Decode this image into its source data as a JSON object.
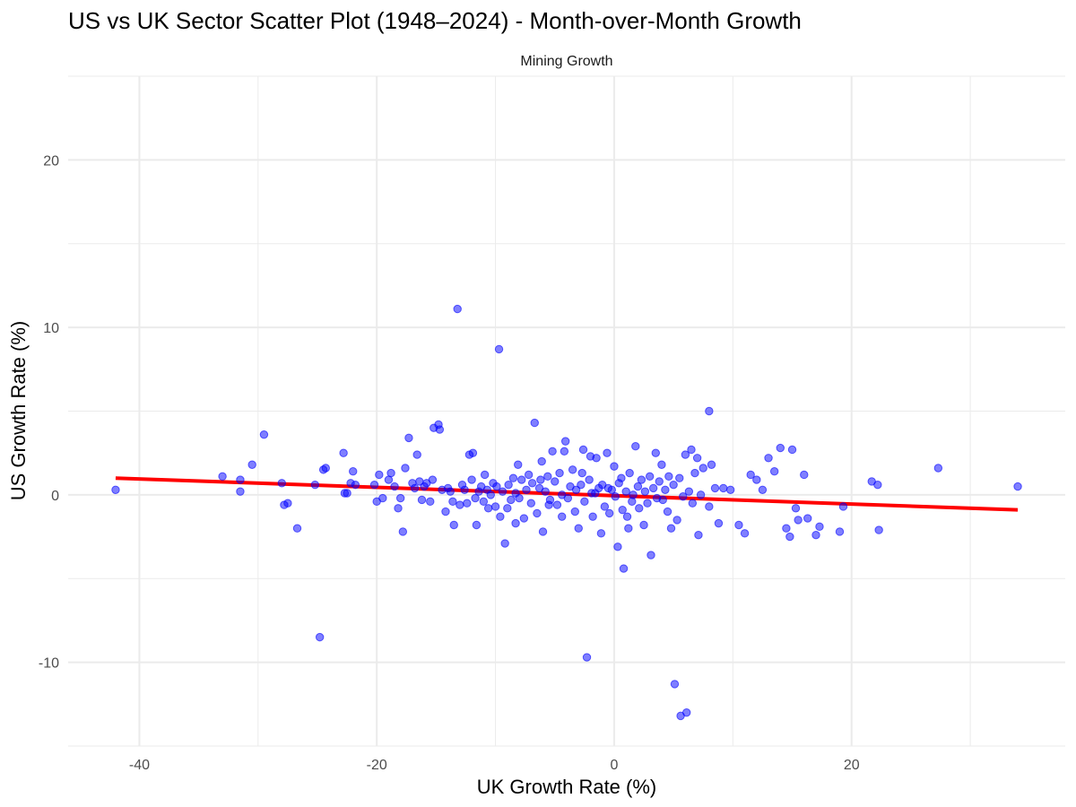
{
  "chart_data": {
    "type": "scatter",
    "title": "US vs UK Sector Scatter Plot (1948–2024) - Month-over-Month Growth",
    "subtitle": "Mining Growth",
    "xlabel": "UK Growth Rate (%)",
    "ylabel": "US Growth Rate (%)",
    "xlim": [
      -46,
      38
    ],
    "ylim": [
      -15,
      25
    ],
    "x_ticks": [
      -40,
      -20,
      0,
      20
    ],
    "y_ticks": [
      -10,
      0,
      10,
      20
    ],
    "x_tick_labels": [
      "-40",
      "-20",
      "0",
      "20"
    ],
    "y_tick_labels": [
      "-10",
      "0",
      "10",
      "20"
    ],
    "grid": true,
    "point_color": "#0000ff",
    "fit_line_color": "#ff0000",
    "fit_line": {
      "x": [
        -42,
        34
      ],
      "y": [
        1.0,
        -0.9
      ]
    },
    "series": [
      {
        "points": [
          [
            -42,
            0.3
          ],
          [
            -33,
            1.1
          ],
          [
            -31.5,
            0.9
          ],
          [
            -31.5,
            0.2
          ],
          [
            -30.5,
            1.8
          ],
          [
            -29.5,
            3.6
          ],
          [
            -28,
            0.7
          ],
          [
            -27.8,
            -0.6
          ],
          [
            -27.5,
            -0.5
          ],
          [
            -26.7,
            -2.0
          ],
          [
            -25.2,
            0.6
          ],
          [
            -24.8,
            -8.5
          ],
          [
            -24.5,
            1.5
          ],
          [
            -24.3,
            1.6
          ],
          [
            -22.8,
            2.5
          ],
          [
            -22.7,
            0.1
          ],
          [
            -22.5,
            0.1
          ],
          [
            -22.2,
            0.7
          ],
          [
            -22,
            1.4
          ],
          [
            -21.8,
            0.6
          ],
          [
            -20.2,
            0.6
          ],
          [
            -20,
            -0.4
          ],
          [
            -19.8,
            1.2
          ],
          [
            -19.5,
            -0.2
          ],
          [
            -19,
            0.9
          ],
          [
            -18.8,
            1.3
          ],
          [
            -18.5,
            0.5
          ],
          [
            -18.2,
            -0.8
          ],
          [
            -18,
            -0.2
          ],
          [
            -17.8,
            -2.2
          ],
          [
            -17.6,
            1.6
          ],
          [
            -17.3,
            3.4
          ],
          [
            -17,
            0.7
          ],
          [
            -16.8,
            0.4
          ],
          [
            -16.6,
            2.4
          ],
          [
            -16.4,
            0.8
          ],
          [
            -16.2,
            -0.3
          ],
          [
            -16,
            0.5
          ],
          [
            -15.8,
            0.7
          ],
          [
            -15.5,
            -0.4
          ],
          [
            -15.3,
            0.9
          ],
          [
            -15.2,
            4.0
          ],
          [
            -14.8,
            4.2
          ],
          [
            -14.7,
            3.9
          ],
          [
            -14.5,
            0.3
          ],
          [
            -14.2,
            -1.0
          ],
          [
            -14,
            0.4
          ],
          [
            -13.8,
            0.2
          ],
          [
            -13.6,
            -0.4
          ],
          [
            -13.5,
            -1.8
          ],
          [
            -13.2,
            11.1
          ],
          [
            -13,
            -0.6
          ],
          [
            -12.8,
            0.6
          ],
          [
            -12.6,
            0.3
          ],
          [
            -12.4,
            -0.5
          ],
          [
            -12.2,
            2.4
          ],
          [
            -12,
            0.9
          ],
          [
            -11.9,
            2.5
          ],
          [
            -11.7,
            -0.2
          ],
          [
            -11.6,
            -1.8
          ],
          [
            -11.4,
            0.2
          ],
          [
            -11.2,
            0.5
          ],
          [
            -11,
            -0.4
          ],
          [
            -10.9,
            1.2
          ],
          [
            -10.7,
            0.3
          ],
          [
            -10.6,
            -0.8
          ],
          [
            -10.4,
            0.0
          ],
          [
            -10.2,
            0.7
          ],
          [
            -10,
            -0.7
          ],
          [
            -9.9,
            0.5
          ],
          [
            -9.7,
            8.7
          ],
          [
            -9.6,
            -1.3
          ],
          [
            -9.4,
            0.2
          ],
          [
            -9.2,
            -2.9
          ],
          [
            -9.0,
            -0.8
          ],
          [
            -8.9,
            0.6
          ],
          [
            -8.7,
            -0.3
          ],
          [
            -8.5,
            1.0
          ],
          [
            -8.3,
            0.1
          ],
          [
            -8.1,
            1.8
          ],
          [
            -8.0,
            -0.2
          ],
          [
            -7.8,
            0.9
          ],
          [
            -7.6,
            -1.4
          ],
          [
            -7.4,
            0.3
          ],
          [
            -7.2,
            1.2
          ],
          [
            -7.0,
            -0.5
          ],
          [
            -6.9,
            0.7
          ],
          [
            -6.7,
            4.3
          ],
          [
            -6.5,
            -1.1
          ],
          [
            -6.3,
            0.4
          ],
          [
            -6.1,
            2.0
          ],
          [
            -6.0,
            -2.2
          ],
          [
            -5.8,
            0.2
          ],
          [
            -5.6,
            1.1
          ],
          [
            -5.4,
            -0.3
          ],
          [
            -5.2,
            2.6
          ],
          [
            -5.0,
            0.8
          ],
          [
            -4.8,
            -0.6
          ],
          [
            -4.6,
            1.3
          ],
          [
            -4.4,
            0.0
          ],
          [
            -4.2,
            2.6
          ],
          [
            -4.1,
            3.2
          ],
          [
            -3.9,
            -0.2
          ],
          [
            -3.7,
            0.5
          ],
          [
            -3.5,
            1.5
          ],
          [
            -3.3,
            -1.0
          ],
          [
            -3.2,
            0.3
          ],
          [
            -3.0,
            -2.0
          ],
          [
            -2.8,
            0.6
          ],
          [
            -2.6,
            2.7
          ],
          [
            -2.5,
            -0.4
          ],
          [
            -2.3,
            -9.7
          ],
          [
            -2.1,
            0.9
          ],
          [
            -2.0,
            2.3
          ],
          [
            -1.8,
            -1.3
          ],
          [
            -1.6,
            0.1
          ],
          [
            -1.5,
            2.2
          ],
          [
            -1.3,
            0.4
          ],
          [
            -1.1,
            -2.3
          ],
          [
            -1.0,
            0.6
          ],
          [
            -0.8,
            -0.7
          ],
          [
            -0.6,
            2.5
          ],
          [
            -0.4,
            -1.1
          ],
          [
            -0.2,
            0.3
          ],
          [
            0.0,
            1.7
          ],
          [
            0.1,
            -0.1
          ],
          [
            0.3,
            -3.1
          ],
          [
            0.4,
            0.7
          ],
          [
            0.6,
            1.0
          ],
          [
            0.8,
            -4.4
          ],
          [
            1.0,
            0.2
          ],
          [
            1.1,
            -1.3
          ],
          [
            1.3,
            1.3
          ],
          [
            1.5,
            -0.4
          ],
          [
            1.6,
            0.0
          ],
          [
            1.8,
            2.9
          ],
          [
            2.0,
            0.5
          ],
          [
            2.1,
            -0.8
          ],
          [
            2.3,
            0.9
          ],
          [
            2.5,
            -1.8
          ],
          [
            2.6,
            0.2
          ],
          [
            2.8,
            -0.5
          ],
          [
            3.0,
            1.1
          ],
          [
            3.1,
            -3.6
          ],
          [
            3.3,
            0.4
          ],
          [
            3.5,
            2.5
          ],
          [
            3.6,
            -0.2
          ],
          [
            3.8,
            0.8
          ],
          [
            4.0,
            1.8
          ],
          [
            4.1,
            -0.3
          ],
          [
            4.3,
            0.3
          ],
          [
            4.5,
            -1.0
          ],
          [
            4.6,
            1.1
          ],
          [
            4.8,
            -2.0
          ],
          [
            5.0,
            0.6
          ],
          [
            5.1,
            -11.3
          ],
          [
            5.3,
            -1.5
          ],
          [
            5.5,
            1.0
          ],
          [
            5.6,
            -13.2
          ],
          [
            5.8,
            -0.1
          ],
          [
            6.0,
            2.4
          ],
          [
            6.1,
            -13.0
          ],
          [
            6.3,
            0.2
          ],
          [
            6.5,
            2.7
          ],
          [
            6.6,
            -0.5
          ],
          [
            6.8,
            1.3
          ],
          [
            7.0,
            2.2
          ],
          [
            7.1,
            -2.4
          ],
          [
            7.3,
            0.0
          ],
          [
            7.5,
            1.6
          ],
          [
            8.0,
            -0.7
          ],
          [
            8.2,
            1.8
          ],
          [
            8.5,
            0.4
          ],
          [
            8.8,
            -1.7
          ],
          [
            9.2,
            0.4
          ],
          [
            9.8,
            0.3
          ],
          [
            10.5,
            -1.8
          ],
          [
            11.0,
            -2.3
          ],
          [
            11.5,
            1.2
          ],
          [
            12.0,
            0.9
          ],
          [
            12.5,
            0.3
          ],
          [
            13.0,
            2.2
          ],
          [
            13.5,
            1.4
          ],
          [
            14.0,
            2.8
          ],
          [
            14.5,
            -2.0
          ],
          [
            14.8,
            -2.5
          ],
          [
            15.0,
            2.7
          ],
          [
            15.3,
            -0.8
          ],
          [
            15.5,
            -1.5
          ],
          [
            16.0,
            1.2
          ],
          [
            16.3,
            -1.4
          ],
          [
            17.0,
            -2.4
          ],
          [
            17.3,
            -1.9
          ],
          [
            19.0,
            -2.2
          ],
          [
            19.3,
            -0.7
          ],
          [
            21.7,
            0.8
          ],
          [
            22.2,
            0.6
          ],
          [
            22.3,
            -2.1
          ],
          [
            27.3,
            1.6
          ],
          [
            34.0,
            0.5
          ],
          [
            8.0,
            5.0
          ],
          [
            -5.5,
            -0.6
          ],
          [
            -6.2,
            0.9
          ],
          [
            -2.7,
            1.3
          ],
          [
            -8.3,
            -1.7
          ],
          [
            -4.4,
            -1.3
          ],
          [
            0.7,
            -0.9
          ],
          [
            1.2,
            -2.0
          ],
          [
            -1.9,
            0.1
          ],
          [
            -0.5,
            0.4
          ]
        ]
      }
    ]
  }
}
